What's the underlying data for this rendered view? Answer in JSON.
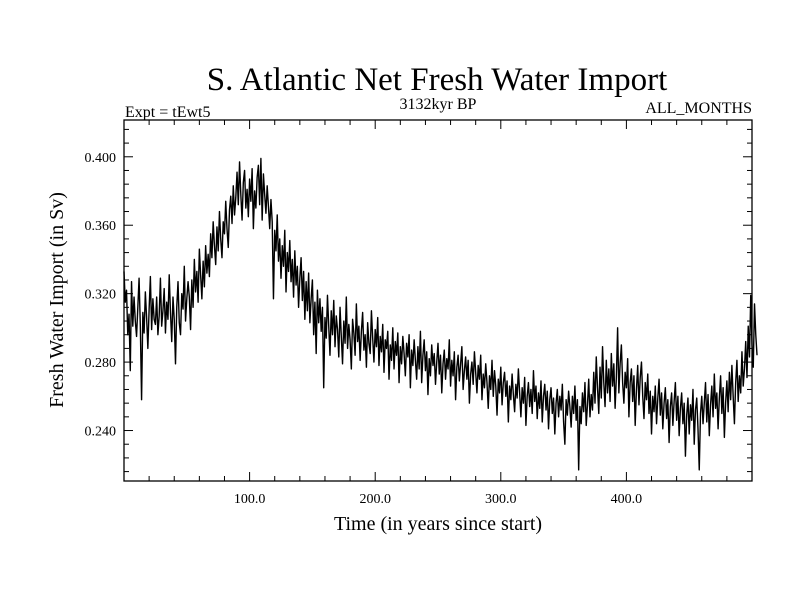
{
  "chart_data": {
    "type": "line",
    "title": "S. Atlantic Net Fresh Water Import",
    "subtitle": "3132kyr BP",
    "annotation_left": "Expt = tEwt5",
    "annotation_right": "ALL_MONTHS",
    "xlabel": "Time (in years since start)",
    "ylabel": "Fresh Water Import (in Sv)",
    "xlim": [
      0,
      500
    ],
    "ylim": [
      0.2105,
      0.4215
    ],
    "x_ticks": [
      {
        "value": 100,
        "label": "100.0"
      },
      {
        "value": 200,
        "label": "200.0"
      },
      {
        "value": 300,
        "label": "300.0"
      },
      {
        "value": 400,
        "label": "400.0"
      }
    ],
    "y_ticks": [
      {
        "value": 0.24,
        "label": "0.240"
      },
      {
        "value": 0.28,
        "label": "0.280"
      },
      {
        "value": 0.32,
        "label": "0.320"
      },
      {
        "value": 0.36,
        "label": "0.360"
      },
      {
        "value": 0.4,
        "label": "0.400"
      }
    ],
    "x_minor_step": 20,
    "y_minor_step": 0.008,
    "grid": false,
    "series": [
      {
        "name": "Fresh Water Import",
        "x_start": 0,
        "x_step": 1,
        "values": [
          0.333,
          0.315,
          0.322,
          0.296,
          0.308,
          0.275,
          0.327,
          0.301,
          0.318,
          0.304,
          0.295,
          0.312,
          0.329,
          0.301,
          0.258,
          0.309,
          0.297,
          0.321,
          0.306,
          0.288,
          0.311,
          0.33,
          0.299,
          0.317,
          0.305,
          0.302,
          0.318,
          0.296,
          0.307,
          0.329,
          0.301,
          0.31,
          0.323,
          0.297,
          0.315,
          0.305,
          0.331,
          0.309,
          0.292,
          0.318,
          0.305,
          0.279,
          0.312,
          0.327,
          0.303,
          0.296,
          0.32,
          0.311,
          0.336,
          0.304,
          0.317,
          0.327,
          0.318,
          0.299,
          0.328,
          0.312,
          0.34,
          0.321,
          0.333,
          0.315,
          0.346,
          0.331,
          0.317,
          0.339,
          0.324,
          0.348,
          0.332,
          0.343,
          0.33,
          0.355,
          0.341,
          0.362,
          0.348,
          0.337,
          0.359,
          0.345,
          0.368,
          0.352,
          0.341,
          0.362,
          0.355,
          0.374,
          0.358,
          0.347,
          0.369,
          0.377,
          0.361,
          0.383,
          0.366,
          0.376,
          0.391,
          0.372,
          0.397,
          0.378,
          0.363,
          0.385,
          0.392,
          0.37,
          0.381,
          0.365,
          0.387,
          0.374,
          0.393,
          0.358,
          0.38,
          0.37,
          0.388,
          0.395,
          0.372,
          0.399,
          0.363,
          0.39,
          0.378,
          0.367,
          0.383,
          0.371,
          0.358,
          0.375,
          0.362,
          0.317,
          0.357,
          0.345,
          0.366,
          0.339,
          0.352,
          0.329,
          0.348,
          0.336,
          0.357,
          0.321,
          0.344,
          0.333,
          0.351,
          0.327,
          0.34,
          0.318,
          0.345,
          0.325,
          0.336,
          0.312,
          0.329,
          0.341,
          0.316,
          0.333,
          0.305,
          0.327,
          0.31,
          0.332,
          0.303,
          0.317,
          0.328,
          0.296,
          0.315,
          0.285,
          0.322,
          0.303,
          0.317,
          0.298,
          0.312,
          0.265,
          0.306,
          0.294,
          0.319,
          0.301,
          0.284,
          0.31,
          0.296,
          0.316,
          0.289,
          0.307,
          0.299,
          0.283,
          0.312,
          0.295,
          0.279,
          0.304,
          0.291,
          0.318,
          0.288,
          0.302,
          0.293,
          0.276,
          0.305,
          0.297,
          0.284,
          0.314,
          0.292,
          0.301,
          0.281,
          0.298,
          0.309,
          0.287,
          0.296,
          0.277,
          0.303,
          0.291,
          0.285,
          0.31,
          0.294,
          0.28,
          0.299,
          0.289,
          0.306,
          0.278,
          0.295,
          0.286,
          0.302,
          0.274,
          0.293,
          0.288,
          0.298,
          0.27,
          0.29,
          0.281,
          0.3,
          0.276,
          0.292,
          0.284,
          0.297,
          0.268,
          0.289,
          0.279,
          0.295,
          0.285,
          0.272,
          0.291,
          0.283,
          0.296,
          0.265,
          0.287,
          0.278,
          0.293,
          0.281,
          0.27,
          0.289,
          0.276,
          0.298,
          0.268,
          0.284,
          0.293,
          0.275,
          0.286,
          0.261,
          0.282,
          0.272,
          0.29,
          0.278,
          0.285,
          0.267,
          0.28,
          0.291,
          0.273,
          0.284,
          0.262,
          0.279,
          0.287,
          0.27,
          0.282,
          0.276,
          0.293,
          0.266,
          0.281,
          0.272,
          0.286,
          0.258,
          0.277,
          0.284,
          0.269,
          0.279,
          0.289,
          0.264,
          0.275,
          0.283,
          0.27,
          0.281,
          0.256,
          0.273,
          0.28,
          0.267,
          0.286,
          0.274,
          0.262,
          0.278,
          0.27,
          0.284,
          0.258,
          0.273,
          0.265,
          0.279,
          0.268,
          0.253,
          0.272,
          0.264,
          0.281,
          0.26,
          0.275,
          0.266,
          0.249,
          0.27,
          0.262,
          0.277,
          0.255,
          0.268,
          0.274,
          0.26,
          0.269,
          0.245,
          0.266,
          0.258,
          0.273,
          0.261,
          0.251,
          0.267,
          0.259,
          0.276,
          0.262,
          0.248,
          0.265,
          0.256,
          0.271,
          0.243,
          0.26,
          0.268,
          0.254,
          0.264,
          0.25,
          0.275,
          0.257,
          0.266,
          0.247,
          0.262,
          0.253,
          0.269,
          0.245,
          0.26,
          0.267,
          0.252,
          0.263,
          0.241,
          0.258,
          0.265,
          0.25,
          0.259,
          0.238,
          0.256,
          0.264,
          0.248,
          0.26,
          0.252,
          0.267,
          0.245,
          0.232,
          0.258,
          0.249,
          0.263,
          0.254,
          0.242,
          0.26,
          0.25,
          0.266,
          0.246,
          0.258,
          0.217,
          0.254,
          0.244,
          0.262,
          0.251,
          0.268,
          0.243,
          0.255,
          0.27,
          0.248,
          0.261,
          0.252,
          0.274,
          0.256,
          0.283,
          0.265,
          0.25,
          0.277,
          0.259,
          0.289,
          0.268,
          0.254,
          0.281,
          0.262,
          0.276,
          0.257,
          0.285,
          0.266,
          0.279,
          0.253,
          0.271,
          0.3,
          0.262,
          0.279,
          0.29,
          0.268,
          0.256,
          0.274,
          0.265,
          0.282,
          0.248,
          0.268,
          0.276,
          0.257,
          0.272,
          0.243,
          0.264,
          0.278,
          0.255,
          0.271,
          0.28,
          0.26,
          0.247,
          0.268,
          0.258,
          0.273,
          0.25,
          0.263,
          0.238,
          0.26,
          0.251,
          0.266,
          0.244,
          0.259,
          0.27,
          0.249,
          0.262,
          0.241,
          0.256,
          0.265,
          0.247,
          0.258,
          0.233,
          0.254,
          0.262,
          0.243,
          0.257,
          0.268,
          0.246,
          0.26,
          0.237,
          0.253,
          0.262,
          0.244,
          0.256,
          0.225,
          0.249,
          0.259,
          0.238,
          0.255,
          0.246,
          0.264,
          0.232,
          0.252,
          0.259,
          0.241,
          0.217,
          0.25,
          0.26,
          0.244,
          0.256,
          0.268,
          0.245,
          0.261,
          0.237,
          0.255,
          0.266,
          0.248,
          0.273,
          0.253,
          0.262,
          0.241,
          0.259,
          0.272,
          0.25,
          0.265,
          0.236,
          0.256,
          0.269,
          0.251,
          0.274,
          0.258,
          0.278,
          0.26,
          0.244,
          0.268,
          0.281,
          0.257,
          0.272,
          0.262,
          0.286,
          0.266,
          0.276,
          0.292,
          0.271,
          0.301,
          0.283,
          0.319,
          0.29,
          0.277,
          0.314,
          0.296,
          0.284
        ]
      }
    ]
  }
}
